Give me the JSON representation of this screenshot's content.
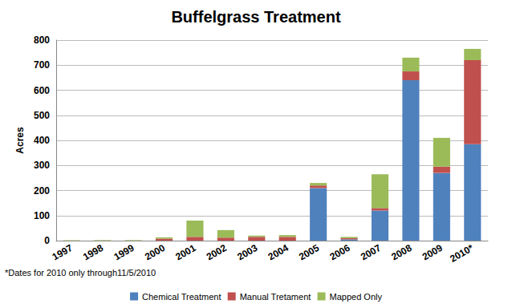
{
  "chart_data": {
    "type": "bar",
    "title": "Buffelgrass Treatment",
    "y_label": "Acres",
    "annotations": [
      "*Dates for 2010 only through11/5/2010"
    ],
    "categories": [
      "1997",
      "1998",
      "1999",
      "2000",
      "2001",
      "2002",
      "2003",
      "2004",
      "2005",
      "2006",
      "2007",
      "2008",
      "2009",
      "2010*"
    ],
    "series": [
      {
        "name": "Chemical Treatment",
        "color": "#4f81bd",
        "values": [
          0,
          0,
          0,
          0,
          0,
          0,
          0,
          0,
          210,
          5,
          120,
          640,
          270,
          385
        ]
      },
      {
        "name": "Manual Tretament",
        "color": "#c0504d",
        "values": [
          0,
          0,
          0,
          8,
          15,
          12,
          15,
          15,
          10,
          5,
          10,
          35,
          25,
          335
        ]
      },
      {
        "name": "Mapped Only",
        "color": "#9bbb59",
        "values": [
          2,
          2,
          2,
          5,
          65,
          30,
          5,
          7,
          10,
          5,
          135,
          55,
          115,
          45
        ]
      }
    ],
    "ylim": [
      0,
      800
    ],
    "yticks": [
      0,
      100,
      200,
      300,
      400,
      500,
      600,
      700,
      800
    ],
    "stacked": true,
    "grid": true,
    "legend": "bottom"
  }
}
